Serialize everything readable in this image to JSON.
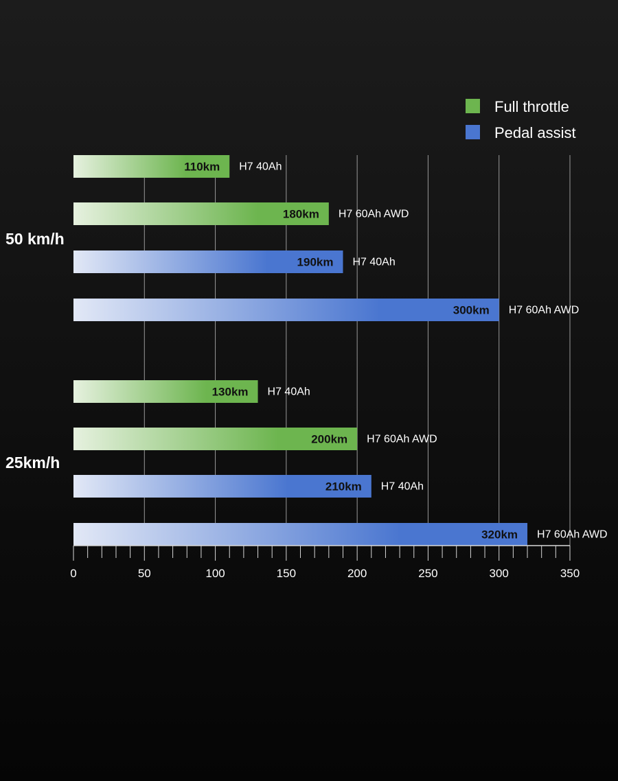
{
  "chart_data": {
    "type": "bar",
    "orientation": "horizontal",
    "title": "",
    "xlabel": "",
    "ylabel": "",
    "xlim": [
      0,
      350
    ],
    "major_ticks": [
      0,
      50,
      100,
      150,
      200,
      250,
      300,
      350
    ],
    "tick_labels": [
      "0",
      "50",
      "100",
      "150",
      "200",
      "250",
      "300",
      "350"
    ],
    "minor_tick_step": 10,
    "grid": true,
    "legend_position": "top-right",
    "legend": [
      {
        "key": "full",
        "label": "Full throttle",
        "color": "#6db54f"
      },
      {
        "key": "pedal",
        "label": "Pedal assist",
        "color": "#4a76d0"
      }
    ],
    "groups": [
      {
        "label": "50 km/h",
        "bars": [
          {
            "series": "full",
            "value": 110,
            "value_label": "110km",
            "model": "H7 40Ah"
          },
          {
            "series": "full",
            "value": 180,
            "value_label": "180km",
            "model": "H7 60Ah AWD"
          },
          {
            "series": "pedal",
            "value": 190,
            "value_label": "190km",
            "model": "H7 40Ah"
          },
          {
            "series": "pedal",
            "value": 300,
            "value_label": "300km",
            "model": "H7 60Ah AWD"
          }
        ]
      },
      {
        "label": "25km/h",
        "bars": [
          {
            "series": "full",
            "value": 130,
            "value_label": "130km",
            "model": "H7 40Ah"
          },
          {
            "series": "full",
            "value": 200,
            "value_label": "200km",
            "model": "H7 60Ah AWD"
          },
          {
            "series": "pedal",
            "value": 210,
            "value_label": "210km",
            "model": "H7 40Ah"
          },
          {
            "series": "pedal",
            "value": 320,
            "value_label": "320km",
            "model": "H7 60Ah AWD"
          }
        ]
      }
    ],
    "colors": {
      "full_start": "#e6f1df",
      "full_end": "#6db54f",
      "pedal_start": "#e2e8f6",
      "pedal_end": "#4a76d0",
      "grid": "#9a9a9a",
      "axis": "#d8d8d8",
      "text": "#ffffff",
      "value_text": "#111111"
    }
  }
}
